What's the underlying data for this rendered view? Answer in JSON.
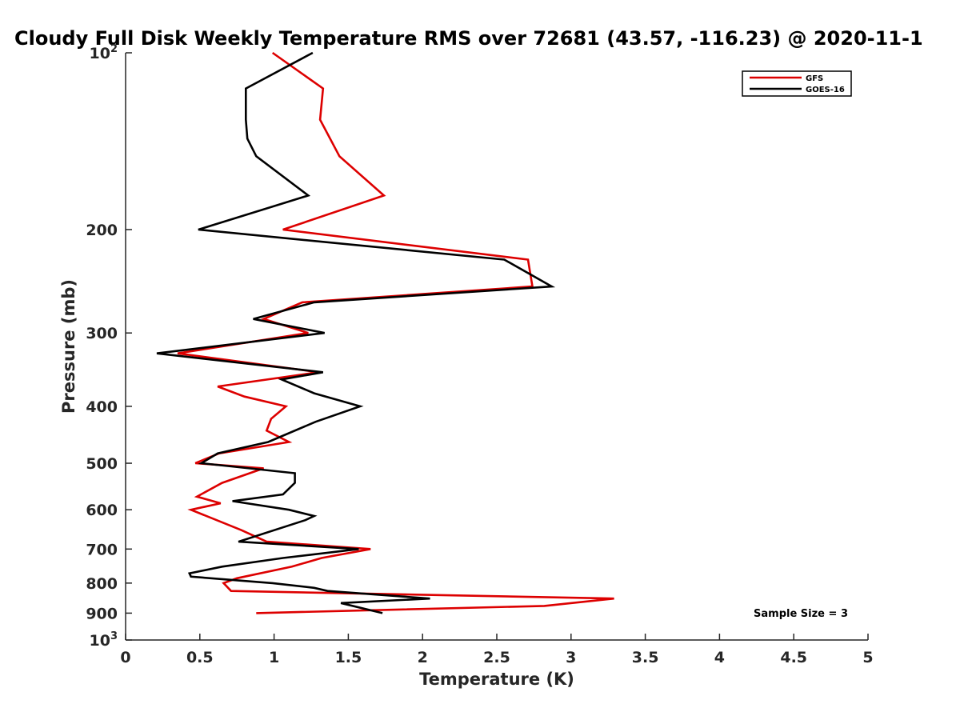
{
  "chart_data": {
    "type": "line",
    "title": "Cloudy Full Disk Weekly Temperature RMS over 72681 (43.57, -116.23) @ 2020-11-1",
    "xlabel": "Temperature (K)",
    "ylabel": "Pressure (mb)",
    "xlim": [
      0,
      5
    ],
    "ylim": [
      100,
      1000
    ],
    "y_scale": "log",
    "y_reversed": true,
    "x_ticks": [
      0,
      0.5,
      1,
      1.5,
      2,
      2.5,
      3,
      3.5,
      4,
      4.5,
      5
    ],
    "x_tick_labels": [
      "0",
      "0.5",
      "1",
      "1.5",
      "2",
      "2.5",
      "3",
      "3.5",
      "4",
      "4.5",
      "5"
    ],
    "y_ticks": [
      100,
      200,
      300,
      400,
      500,
      600,
      700,
      800,
      900,
      1000
    ],
    "y_tick_labels": [
      "10^2",
      "200",
      "300",
      "400",
      "500",
      "600",
      "700",
      "800",
      "900",
      "10^3"
    ],
    "grid": false,
    "legend_position": "top-right",
    "annotation": "Sample Size = 3",
    "series": [
      {
        "name": "GFS",
        "color": "#dd0000",
        "points": [
          [
            0.99,
            100
          ],
          [
            1.33,
            115
          ],
          [
            1.31,
            130
          ],
          [
            1.44,
            150
          ],
          [
            1.74,
            175
          ],
          [
            1.06,
            200
          ],
          [
            2.71,
            225
          ],
          [
            2.74,
            250
          ],
          [
            1.19,
            266
          ],
          [
            0.93,
            284
          ],
          [
            1.23,
            300
          ],
          [
            0.35,
            325
          ],
          [
            1.3,
            350
          ],
          [
            0.62,
            370
          ],
          [
            0.8,
            385
          ],
          [
            1.08,
            400
          ],
          [
            0.98,
            420
          ],
          [
            0.95,
            440
          ],
          [
            1.1,
            460
          ],
          [
            0.63,
            481
          ],
          [
            0.47,
            500
          ],
          [
            0.93,
            510
          ],
          [
            0.65,
            540
          ],
          [
            0.48,
            570
          ],
          [
            0.64,
            585
          ],
          [
            0.44,
            600
          ],
          [
            0.78,
            650
          ],
          [
            0.95,
            680
          ],
          [
            1.65,
            700
          ],
          [
            1.32,
            725
          ],
          [
            1.12,
            750
          ],
          [
            0.75,
            785
          ],
          [
            0.66,
            800
          ],
          [
            0.71,
            825
          ],
          [
            3.29,
            850
          ],
          [
            2.82,
            875
          ],
          [
            0.88,
            900
          ]
        ]
      },
      {
        "name": "GOES-16",
        "color": "#000000",
        "points": [
          [
            1.26,
            100
          ],
          [
            0.81,
            115
          ],
          [
            0.81,
            130
          ],
          [
            0.82,
            140
          ],
          [
            0.88,
            150
          ],
          [
            1.23,
            175
          ],
          [
            0.49,
            200
          ],
          [
            2.55,
            225
          ],
          [
            2.87,
            250
          ],
          [
            1.27,
            266
          ],
          [
            0.86,
            284
          ],
          [
            1.34,
            300
          ],
          [
            0.21,
            325
          ],
          [
            1.33,
            350
          ],
          [
            1.05,
            360
          ],
          [
            1.27,
            380
          ],
          [
            1.58,
            400
          ],
          [
            1.28,
            425
          ],
          [
            0.96,
            460
          ],
          [
            0.62,
            481
          ],
          [
            0.51,
            500
          ],
          [
            1.14,
            520
          ],
          [
            1.14,
            540
          ],
          [
            1.06,
            565
          ],
          [
            0.72,
            580
          ],
          [
            1.1,
            600
          ],
          [
            1.27,
            615
          ],
          [
            1.21,
            625
          ],
          [
            0.76,
            680
          ],
          [
            1.57,
            700
          ],
          [
            1.06,
            725
          ],
          [
            0.65,
            750
          ],
          [
            0.43,
            770
          ],
          [
            0.44,
            780
          ],
          [
            0.99,
            800
          ],
          [
            1.27,
            815
          ],
          [
            1.36,
            825
          ],
          [
            2.05,
            850
          ],
          [
            1.45,
            865
          ],
          [
            1.73,
            900
          ]
        ]
      }
    ]
  }
}
